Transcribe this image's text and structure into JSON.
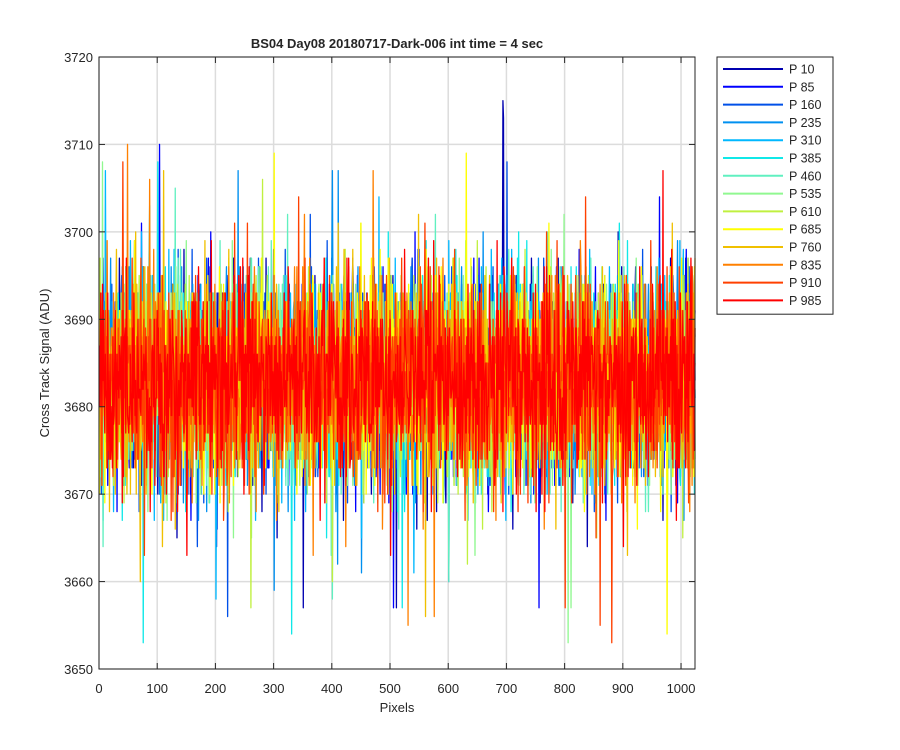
{
  "chart_data": {
    "type": "line",
    "title": "BS04 Day08 20180717-Dark-006 int time = 4 sec",
    "xlabel": "Pixels",
    "ylabel": "Cross Track Signal (ADU)",
    "xlim": [
      0,
      1024
    ],
    "ylim": [
      3650,
      3720
    ],
    "x_ticks": [
      0,
      100,
      200,
      300,
      400,
      500,
      600,
      700,
      800,
      900,
      1000
    ],
    "y_ticks": [
      3650,
      3660,
      3670,
      3680,
      3690,
      3700,
      3710,
      3720
    ],
    "grid": true,
    "legend_position": "outside-top-right",
    "x_points": 1024,
    "noise_center": 3683,
    "noise_sigma": 6,
    "series": [
      {
        "name": "P 10",
        "color": "#0000b0",
        "extremes": [
          [
            693,
            3715
          ],
          [
            694,
            3713
          ],
          [
            350,
            3657
          ],
          [
            510,
            3657
          ]
        ]
      },
      {
        "name": "P 85",
        "color": "#0000ff",
        "extremes": [
          [
            103,
            3710
          ],
          [
            755,
            3707
          ],
          [
            505,
            3657
          ],
          [
            755,
            3657
          ]
        ]
      },
      {
        "name": "P 160",
        "color": "#0050e8",
        "extremes": [
          [
            700,
            3708
          ],
          [
            220,
            3656
          ],
          [
            600,
            3660
          ]
        ]
      },
      {
        "name": "P 235",
        "color": "#0090f0",
        "extremes": [
          [
            400,
            3707
          ],
          [
            410,
            3707
          ],
          [
            300,
            3659
          ],
          [
            450,
            3661
          ]
        ]
      },
      {
        "name": "P 310",
        "color": "#00b8ff",
        "extremes": [
          [
            10,
            3707
          ],
          [
            480,
            3704
          ],
          [
            200,
            3658
          ],
          [
            540,
            3661
          ]
        ]
      },
      {
        "name": "P 385",
        "color": "#10e8e8",
        "extremes": [
          [
            100,
            3708
          ],
          [
            330,
            3654
          ],
          [
            75,
            3653
          ],
          [
            520,
            3657
          ]
        ]
      },
      {
        "name": "P 460",
        "color": "#60f0c0",
        "extremes": [
          [
            130,
            3705
          ],
          [
            400,
            3658
          ],
          [
            600,
            3660
          ]
        ]
      },
      {
        "name": "P 535",
        "color": "#90f890",
        "extremes": [
          [
            5,
            3708
          ],
          [
            805,
            3653
          ],
          [
            810,
            3657
          ]
        ]
      },
      {
        "name": "P 610",
        "color": "#c0f040",
        "extremes": [
          [
            280,
            3706
          ],
          [
            260,
            3657
          ],
          [
            400,
            3660
          ]
        ]
      },
      {
        "name": "P 685",
        "color": "#ffff00",
        "extremes": [
          [
            300,
            3709
          ],
          [
            630,
            3709
          ],
          [
            975,
            3654
          ]
        ]
      },
      {
        "name": "P 760",
        "color": "#f0c000",
        "extremes": [
          [
            110,
            3707
          ],
          [
            560,
            3656
          ],
          [
            70,
            3660
          ]
        ]
      },
      {
        "name": "P 835",
        "color": "#ff8000",
        "extremes": [
          [
            48,
            3710
          ],
          [
            470,
            3707
          ],
          [
            530,
            3655
          ],
          [
            575,
            3656
          ]
        ]
      },
      {
        "name": "P 910",
        "color": "#ff4000",
        "extremes": [
          [
            40,
            3708
          ],
          [
            800,
            3657
          ],
          [
            860,
            3655
          ],
          [
            880,
            3653
          ]
        ]
      },
      {
        "name": "P 985",
        "color": "#ff0000",
        "extremes": [
          [
            968,
            3707
          ],
          [
            150,
            3663
          ],
          [
            500,
            3663
          ],
          [
            900,
            3664
          ]
        ]
      }
    ]
  }
}
